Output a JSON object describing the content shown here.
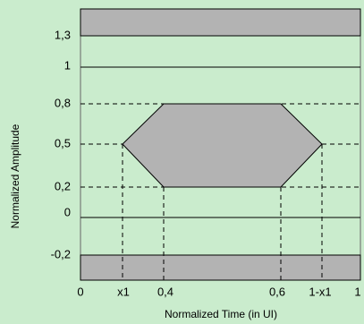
{
  "y_axis": {
    "title": "Normalized Amplitude",
    "labels": [
      "1,3",
      "1",
      "0,8",
      "0,5",
      "0,2",
      "0",
      "-0,2"
    ]
  },
  "x_axis": {
    "title": "Normalized Time (in UI)",
    "labels": [
      "0",
      "x1",
      "0,4",
      "0,6",
      "1-x1",
      "1"
    ]
  }
}
